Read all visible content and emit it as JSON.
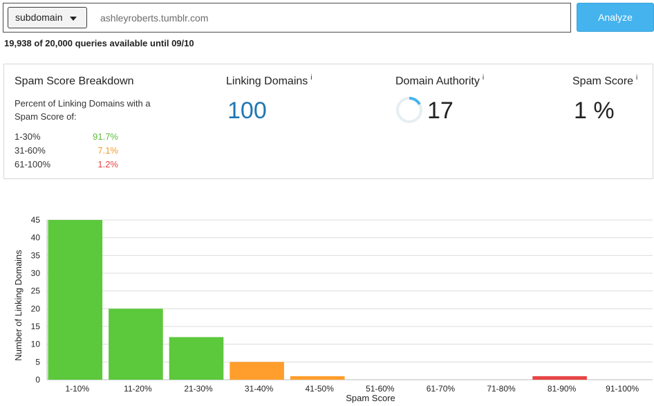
{
  "search": {
    "mode": "subdomain",
    "query": "ashleyroberts.tumblr.com",
    "analyze_label": "Analyze"
  },
  "quota_text": "19,938 of 20,000 queries available until 09/10",
  "breakdown": {
    "title": "Spam Score Breakdown",
    "description": "Percent of Linking Domains with a Spam Score of:",
    "rows": [
      {
        "range": "1-30%",
        "pct": "91.7%",
        "color": "#5bbf3a"
      },
      {
        "range": "31-60%",
        "pct": "7.1%",
        "color": "#f29b2e"
      },
      {
        "range": "61-100%",
        "pct": "1.2%",
        "color": "#e84545"
      }
    ]
  },
  "metrics": {
    "linking_domains": {
      "label": "Linking Domains",
      "info": "i",
      "value": "100",
      "color": "#1f77b4"
    },
    "domain_authority": {
      "label": "Domain Authority",
      "info": "i",
      "value": "17",
      "ring_fraction": 0.17
    },
    "spam_score": {
      "label": "Spam Score",
      "info": "i",
      "value": "1 %"
    }
  },
  "chart_data": {
    "type": "bar",
    "categories": [
      "1-10%",
      "11-20%",
      "21-30%",
      "31-40%",
      "41-50%",
      "51-60%",
      "61-70%",
      "71-80%",
      "81-90%",
      "91-100%"
    ],
    "values": [
      45,
      20,
      12,
      5,
      1,
      0,
      0,
      0,
      1,
      0
    ],
    "colors": [
      "#5cc83c",
      "#5cc83c",
      "#5cc83c",
      "#ff9e2c",
      "#ff9e2c",
      "#ff9e2c",
      "#ff9e2c",
      "#e84545",
      "#e84545",
      "#e84545"
    ],
    "xlabel": "Spam Score",
    "ylabel": "Number of Linking Domains",
    "ylim": [
      0,
      45
    ],
    "yticks": [
      "0",
      "5",
      "10",
      "15",
      "20",
      "25",
      "30",
      "35",
      "40",
      "45"
    ],
    "grid": true
  }
}
